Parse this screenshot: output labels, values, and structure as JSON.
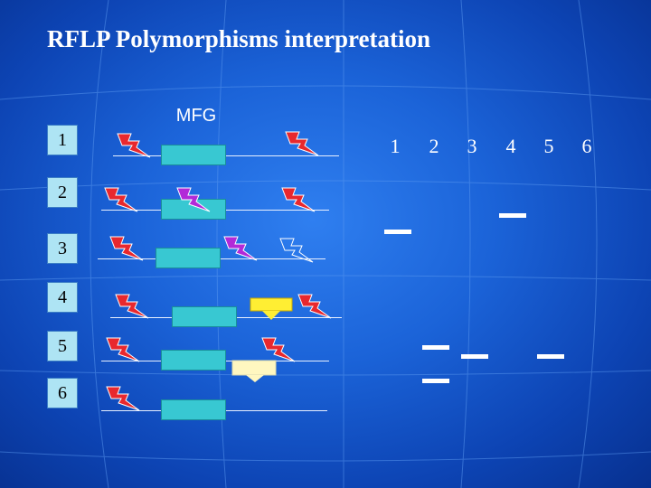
{
  "title": "RFLP Polymorphisms interpretation",
  "gene_label": "MFG",
  "rows": [
    "1",
    "2",
    "3",
    "4",
    "5",
    "6"
  ],
  "lanes": [
    "1",
    "2",
    "3",
    "4",
    "5",
    "6"
  ],
  "colors": {
    "background": "#1b63d8",
    "exon": "#38c8d2",
    "site_present": "#e8282e",
    "site_polymorphic": "#b22ad8",
    "site_absent": "#ffffff",
    "insertion": "#ffee33",
    "band": "#ffffff"
  }
}
